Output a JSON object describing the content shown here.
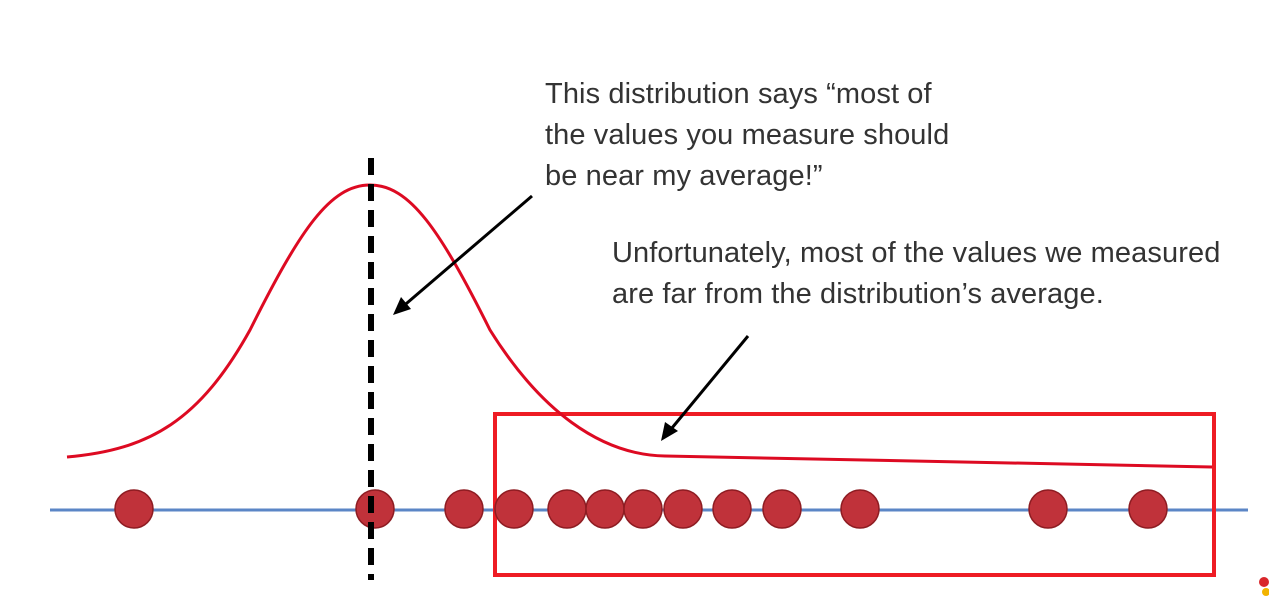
{
  "annotations": {
    "distribution_note": [
      "This distribution says “most of",
      "the values you measure should",
      "be near my average!”"
    ],
    "measurement_note": [
      "Unfortunately, most of the values we measured",
      "are far from the distribution’s average."
    ]
  },
  "colors": {
    "curve": "#dd0a22",
    "points": "#c0323a",
    "axis": "#5b86c6",
    "mean_line": "#000000",
    "box": "#ee1c24",
    "arrows": "#000000",
    "text": "#333333"
  },
  "diagram": {
    "curve": "normal distribution",
    "mean_line_style": "dashed",
    "data_points_count": 13
  }
}
